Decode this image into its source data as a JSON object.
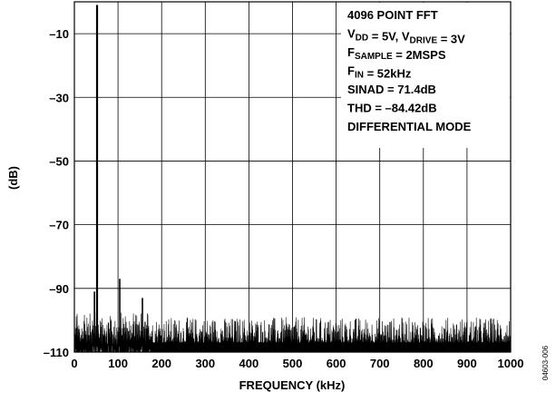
{
  "figure_id": "04603-006",
  "chart_data": {
    "type": "line",
    "xlabel": "FREQUENCY (kHz)",
    "ylabel": "(dB)",
    "xlim": [
      0,
      1000
    ],
    "ylim": [
      -110,
      -1
    ],
    "x_ticks": [
      "0",
      "100",
      "200",
      "300",
      "400",
      "500",
      "600",
      "700",
      "800",
      "900",
      "1000"
    ],
    "x_tick_values": [
      0,
      100,
      200,
      300,
      400,
      500,
      600,
      700,
      800,
      900,
      1000
    ],
    "y_ticks": [
      "–10",
      "–30",
      "–50",
      "–70",
      "–90",
      "–110"
    ],
    "y_tick_values": [
      -10,
      -30,
      -50,
      -70,
      -90,
      -110
    ],
    "grid": true,
    "annotations": [
      {
        "id": "fft",
        "parts": [
          {
            "t": "4096 POINT FFT"
          }
        ]
      },
      {
        "id": "supply",
        "parts": [
          {
            "t": "V"
          },
          {
            "t": "DD",
            "sub": true
          },
          {
            "t": " = 5V, V"
          },
          {
            "t": "DRIVE",
            "sub": true
          },
          {
            "t": " = 3V"
          }
        ]
      },
      {
        "id": "fsample",
        "parts": [
          {
            "t": "F"
          },
          {
            "t": "SAMPLE",
            "sub": true
          },
          {
            "t": " = 2MSPS"
          }
        ]
      },
      {
        "id": "fin",
        "parts": [
          {
            "t": "F"
          },
          {
            "t": "IN",
            "sub": true
          },
          {
            "t": " = 52kHz"
          }
        ]
      },
      {
        "id": "sinad",
        "parts": [
          {
            "t": "SINAD = 71.4dB"
          }
        ]
      },
      {
        "id": "thd",
        "parts": [
          {
            "t": "THD = –84.42dB"
          }
        ]
      },
      {
        "id": "mode",
        "parts": [
          {
            "t": "DIFFERENTIAL MODE"
          }
        ]
      }
    ],
    "series": [
      {
        "noise_floor_db": -106,
        "peaks": [
          {
            "x": 52,
            "y": -1
          },
          {
            "x": 46,
            "y": -91
          },
          {
            "x": 104,
            "y": -87
          },
          {
            "x": 156,
            "y": -93
          }
        ]
      }
    ]
  }
}
